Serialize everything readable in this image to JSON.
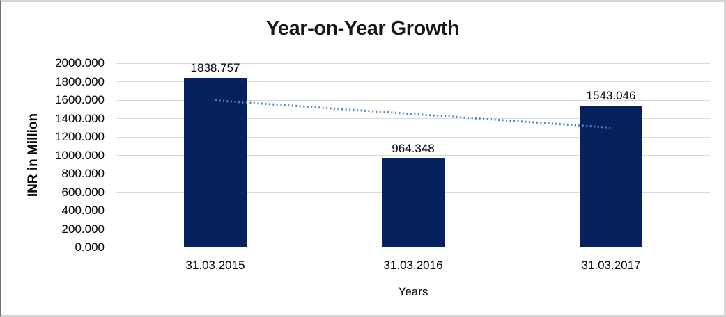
{
  "chart_data": {
    "type": "bar",
    "title": "Year-on-Year Growth",
    "xlabel": "Years",
    "ylabel": "INR in Million",
    "categories": [
      "31.03.2015",
      "31.03.2016",
      "31.03.2017"
    ],
    "values": [
      1838.757,
      964.348,
      1543.046
    ],
    "bar_labels": [
      "1838.757",
      "964.348",
      "1543.046"
    ],
    "ylim": [
      0,
      2000
    ],
    "ytick_labels": [
      "0.000",
      "200.000",
      "400.000",
      "600.000",
      "800.000",
      "1000.000",
      "1200.000",
      "1400.000",
      "1600.000",
      "1800.000",
      "2000.000"
    ],
    "grid": true,
    "legend": "none",
    "bar_color": "#06225e",
    "gridline_color": "#d9d9d9",
    "trendline": {
      "type": "linear",
      "style": "dotted",
      "color": "#4e86c8",
      "points": [
        1596.57,
        1448.72,
        1300.86
      ]
    }
  }
}
